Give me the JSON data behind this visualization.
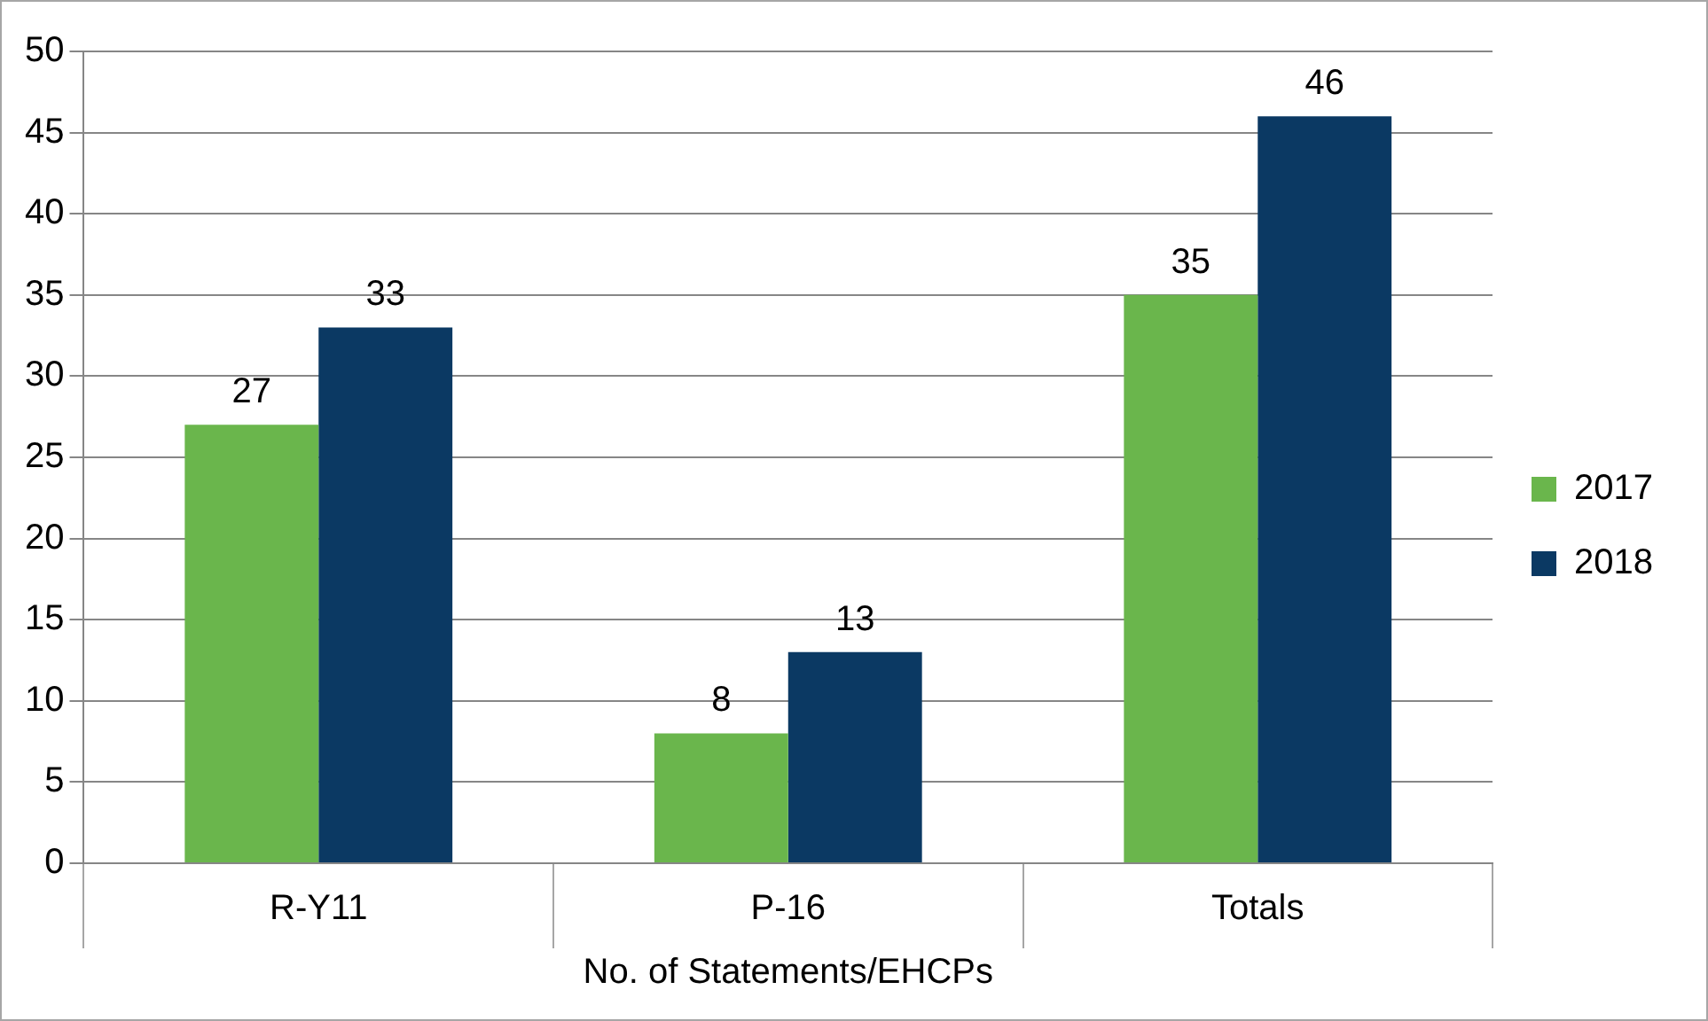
{
  "chart_data": {
    "type": "bar",
    "xlabel": "No. of Statements/EHCPs",
    "categories": [
      "R-Y11",
      "P-16",
      "Totals"
    ],
    "series": [
      {
        "name": "2017",
        "color": "#6ab64c",
        "values": [
          27,
          8,
          35
        ]
      },
      {
        "name": "2018",
        "color": "#0b3963",
        "values": [
          33,
          13,
          46
        ]
      }
    ],
    "ylim": [
      0,
      50
    ],
    "yticks": [
      0,
      5,
      10,
      15,
      20,
      25,
      30,
      35,
      40,
      45,
      50
    ],
    "grid": "y",
    "legend": "right",
    "data_labels": true
  }
}
